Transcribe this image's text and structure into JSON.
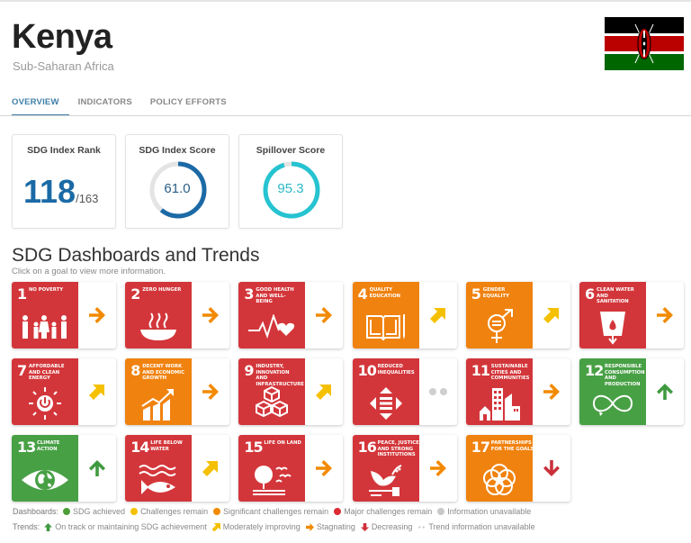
{
  "header": {
    "country": "Kenya",
    "region": "Sub-Saharan Africa",
    "flag_icon": "kenya-flag"
  },
  "tabs": [
    {
      "label": "OVERVIEW",
      "active": true
    },
    {
      "label": "INDICATORS",
      "active": false
    },
    {
      "label": "POLICY EFFORTS",
      "active": false
    }
  ],
  "scores": {
    "rank": {
      "title": "SDG Index Rank",
      "value": "118",
      "total": "/163"
    },
    "index_score": {
      "title": "SDG Index Score",
      "value": "61.0",
      "percent": 61.0,
      "color": "#1b6aa6"
    },
    "spillover": {
      "title": "Spillover Score",
      "value": "95.3",
      "percent": 95.3,
      "color": "#26c3d1"
    }
  },
  "section": {
    "title": "SDG Dashboards and Trends",
    "subtitle": "Click on a goal to view more information."
  },
  "colors": {
    "green": "#4c9f38",
    "yellow": "#f5c000",
    "orange": "#f28a00",
    "red": "#dd2c32",
    "grey": "#c8c8c8",
    "tile_red": "#d3363a",
    "tile_orange": "#f0820f",
    "tile_green": "#48a045"
  },
  "goals": [
    {
      "num": "1",
      "name": "No Poverty",
      "status": "red",
      "trend": "stagnating",
      "icon": "family-icon"
    },
    {
      "num": "2",
      "name": "Zero Hunger",
      "status": "red",
      "trend": "stagnating",
      "icon": "bowl-icon"
    },
    {
      "num": "3",
      "name": "Good Health and Well-Being",
      "status": "red",
      "trend": "stagnating",
      "icon": "heartbeat-icon"
    },
    {
      "num": "4",
      "name": "Quality Education",
      "status": "orange",
      "trend": "moderately-improving",
      "icon": "book-icon"
    },
    {
      "num": "5",
      "name": "Gender Equality",
      "status": "orange",
      "trend": "moderately-improving",
      "icon": "gender-icon"
    },
    {
      "num": "6",
      "name": "Clean Water and Sanitation",
      "status": "red",
      "trend": "stagnating",
      "icon": "water-glass-icon"
    },
    {
      "num": "7",
      "name": "Affordable and Clean Energy",
      "status": "red",
      "trend": "moderately-improving",
      "icon": "sun-power-icon"
    },
    {
      "num": "8",
      "name": "Decent Work and Economic Growth",
      "status": "orange",
      "trend": "stagnating",
      "icon": "growth-chart-icon"
    },
    {
      "num": "9",
      "name": "Industry, Innovation and Infrastructure",
      "status": "red",
      "trend": "moderately-improving",
      "icon": "cubes-icon"
    },
    {
      "num": "10",
      "name": "Reduced Inequalities",
      "status": "red",
      "trend": "unavailable",
      "icon": "equality-arrows-icon"
    },
    {
      "num": "11",
      "name": "Sustainable Cities and Communities",
      "status": "red",
      "trend": "stagnating",
      "icon": "city-icon"
    },
    {
      "num": "12",
      "name": "Responsible Consumption and Production",
      "status": "green",
      "trend": "on-track",
      "icon": "infinity-icon"
    },
    {
      "num": "13",
      "name": "Climate Action",
      "status": "green",
      "trend": "on-track",
      "icon": "eye-globe-icon"
    },
    {
      "num": "14",
      "name": "Life Below Water",
      "status": "red",
      "trend": "moderately-improving",
      "icon": "fish-icon"
    },
    {
      "num": "15",
      "name": "Life on Land",
      "status": "red",
      "trend": "stagnating",
      "icon": "tree-birds-icon"
    },
    {
      "num": "16",
      "name": "Peace, Justice and Strong Institutions",
      "status": "red",
      "trend": "stagnating",
      "icon": "dove-gavel-icon"
    },
    {
      "num": "17",
      "name": "Partnerships for the Goals",
      "status": "orange",
      "trend": "decreasing",
      "icon": "rings-icon"
    }
  ],
  "legend": {
    "dashboards_label": "Dashboards:",
    "dashboards": [
      {
        "label": "SDG achieved",
        "color": "#4c9f38"
      },
      {
        "label": "Challenges remain",
        "color": "#f5c000"
      },
      {
        "label": "Significant challenges remain",
        "color": "#f28a00"
      },
      {
        "label": "Major challenges remain",
        "color": "#dd2c32"
      },
      {
        "label": "Information unavailable",
        "color": "#c8c8c8"
      }
    ],
    "trends_label": "Trends:",
    "trends": [
      {
        "label": "On track or maintaining SDG achievement",
        "icon": "arrow-up-icon",
        "color": "#3f9a3f"
      },
      {
        "label": "Moderately improving",
        "icon": "arrow-up-right-icon",
        "color": "#f5c000"
      },
      {
        "label": "Stagnating",
        "icon": "arrow-right-icon",
        "color": "#f28a00"
      },
      {
        "label": "Decreasing",
        "icon": "arrow-down-icon",
        "color": "#d0303a"
      },
      {
        "label": "Trend information unavailable",
        "icon": "dots-icon",
        "color": "#c8c8c8"
      }
    ]
  }
}
